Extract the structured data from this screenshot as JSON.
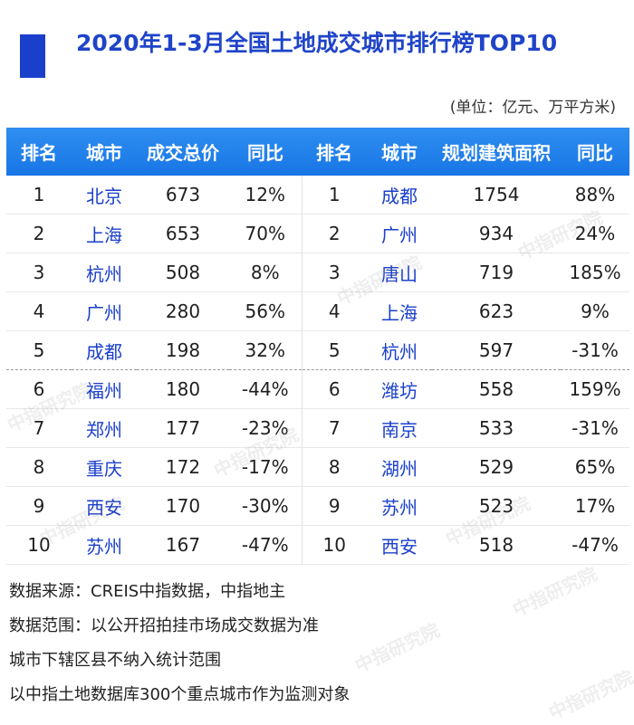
{
  "title": "2020年1-3月全国土地成交城市排行榜TOP10",
  "unit": "(单位：亿元、万平方米)",
  "headers": [
    "排名",
    "城市",
    "成交总价",
    "同比",
    "排名",
    "城市",
    "规划建筑面积",
    "同比"
  ],
  "rows": [
    {
      "rank_a": "1",
      "city_a": "北京",
      "price": "673",
      "yoy_a": "12%",
      "rank_b": "1",
      "city_b": "成都",
      "area": "1754",
      "yoy_b": "88%"
    },
    {
      "rank_a": "2",
      "city_a": "上海",
      "price": "653",
      "yoy_a": "70%",
      "rank_b": "2",
      "city_b": "广州",
      "area": "934",
      "yoy_b": "24%"
    },
    {
      "rank_a": "3",
      "city_a": "杭州",
      "price": "508",
      "yoy_a": "8%",
      "rank_b": "3",
      "city_b": "唐山",
      "area": "719",
      "yoy_b": "185%"
    },
    {
      "rank_a": "4",
      "city_a": "广州",
      "price": "280",
      "yoy_a": "56%",
      "rank_b": "4",
      "city_b": "上海",
      "area": "623",
      "yoy_b": "9%"
    },
    {
      "rank_a": "5",
      "city_a": "成都",
      "price": "198",
      "yoy_a": "32%",
      "rank_b": "5",
      "city_b": "杭州",
      "area": "597",
      "yoy_b": "-31%"
    },
    {
      "rank_a": "6",
      "city_a": "福州",
      "price": "180",
      "yoy_a": "-44%",
      "rank_b": "6",
      "city_b": "潍坊",
      "area": "558",
      "yoy_b": "159%"
    },
    {
      "rank_a": "7",
      "city_a": "郑州",
      "price": "177",
      "yoy_a": "-23%",
      "rank_b": "7",
      "city_b": "南京",
      "area": "533",
      "yoy_b": "-31%"
    },
    {
      "rank_a": "8",
      "city_a": "重庆",
      "price": "172",
      "yoy_a": "-17%",
      "rank_b": "8",
      "city_b": "湖州",
      "area": "529",
      "yoy_b": "65%"
    },
    {
      "rank_a": "9",
      "city_a": "西安",
      "price": "170",
      "yoy_a": "-30%",
      "rank_b": "9",
      "city_b": "苏州",
      "area": "523",
      "yoy_b": "17%"
    },
    {
      "rank_a": "10",
      "city_a": "苏州",
      "price": "167",
      "yoy_a": "-47%",
      "rank_b": "10",
      "city_b": "西安",
      "area": "518",
      "yoy_b": "-47%"
    }
  ],
  "notes": [
    "数据来源：CREIS中指数据，中指地主",
    "数据范围：以公开招拍挂市场成交数据为准",
    "城市下辖区县不纳入统计范围",
    "以中指土地数据库300个重点城市作为监测对象"
  ],
  "watermark": "中指研究院",
  "colors": {
    "header_bg": "#1876e6",
    "title": "#1f44c8",
    "accent_bar": "#1a3fcb",
    "city_text": "#1a3fcb"
  }
}
